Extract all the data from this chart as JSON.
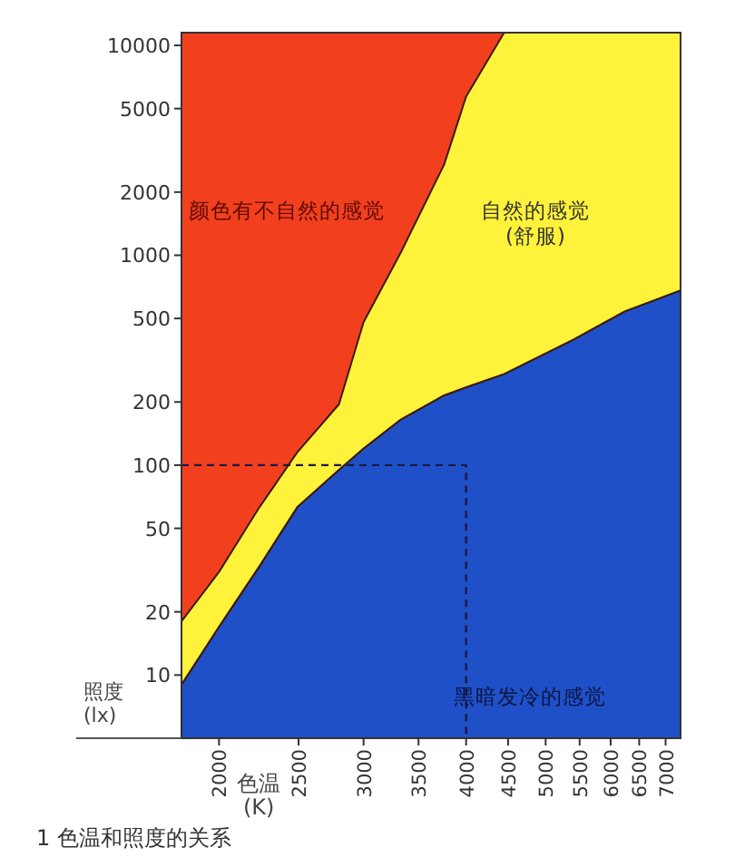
{
  "chart_data": {
    "type": "area",
    "xlabel": "色温\n(K)",
    "ylabel": "照度\n(lx)",
    "annotations": [
      "1  色温和照度的关系"
    ],
    "log": "xy",
    "grid": false,
    "xlim": [
      1800,
      7300
    ],
    "ylim": [
      5,
      11500
    ],
    "xticks": [
      2000,
      2500,
      3000,
      3500,
      4000,
      4500,
      5000,
      5500,
      6000,
      6500,
      7000
    ],
    "yticks": [
      10,
      20,
      50,
      100,
      200,
      500,
      1000,
      2000,
      5000,
      10000
    ],
    "bands": [
      {
        "axis": "x",
        "from": 1800,
        "to": 7300,
        "color": "#f2401f",
        "label": "颜色有不自然的感觉"
      }
    ],
    "stacked": true,
    "series": [
      {
        "name": "黑暗发冷的感觉",
        "color": "#2050c8",
        "x": [
          1800,
          2000,
          2240,
          2490,
          2800,
          3000,
          3330,
          3760,
          4000,
          4450,
          5400,
          6240,
          7300
        ],
        "values": [
          9,
          17,
          33,
          63,
          95,
          120,
          165,
          215,
          235,
          272,
          396,
          540,
          680
        ]
      },
      {
        "name": "自然的感觉\n(舒服)",
        "color": "#fff23a",
        "x": [
          1800,
          2000,
          2240,
          2490,
          2800,
          3000,
          3330,
          3760,
          4000,
          4450,
          5400,
          6240,
          7300
        ],
        "values": [
          9,
          14,
          30,
          52,
          100,
          360,
          865,
          2485,
          5465,
          11228,
          11104,
          10960,
          10820
        ]
      },
      {
        "type": "line",
        "line_style": "dashed",
        "color": "#1a1a40",
        "x": [
          1800,
          4000,
          4000
        ],
        "values": [
          100,
          100,
          5
        ]
      }
    ]
  }
}
